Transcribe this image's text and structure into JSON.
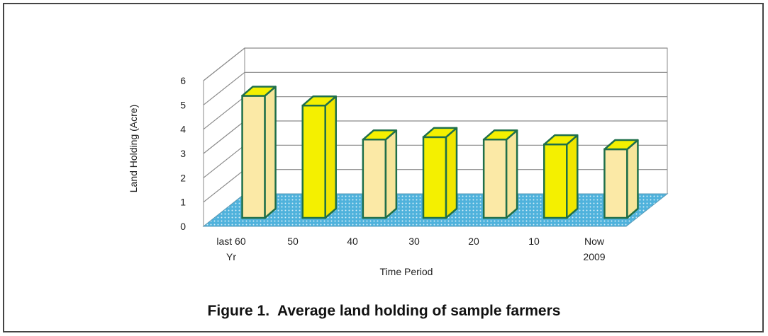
{
  "figure_caption": "Figure 1.  Average land holding of sample farmers",
  "chart_data": {
    "type": "bar",
    "title": "",
    "xlabel": "Time Period",
    "ylabel": "Land Holding (Acre)",
    "ylim": [
      0,
      6
    ],
    "yticks": [
      "0",
      "1",
      "2",
      "3",
      "4",
      "5",
      "6"
    ],
    "categories": [
      [
        "last 60",
        "Yr"
      ],
      [
        "50"
      ],
      [
        "40"
      ],
      [
        "30"
      ],
      [
        "20"
      ],
      [
        "10"
      ],
      [
        "Now",
        "2009"
      ]
    ],
    "values": [
      5.2,
      4.8,
      3.4,
      3.5,
      3.4,
      3.2,
      3.0
    ],
    "grid": true,
    "style": "3d-column",
    "colors": {
      "bar": "#f4f000",
      "bar_light": "#fbe9a6",
      "edge": "#1f6f4a",
      "floor": "#4fb2dc"
    }
  }
}
